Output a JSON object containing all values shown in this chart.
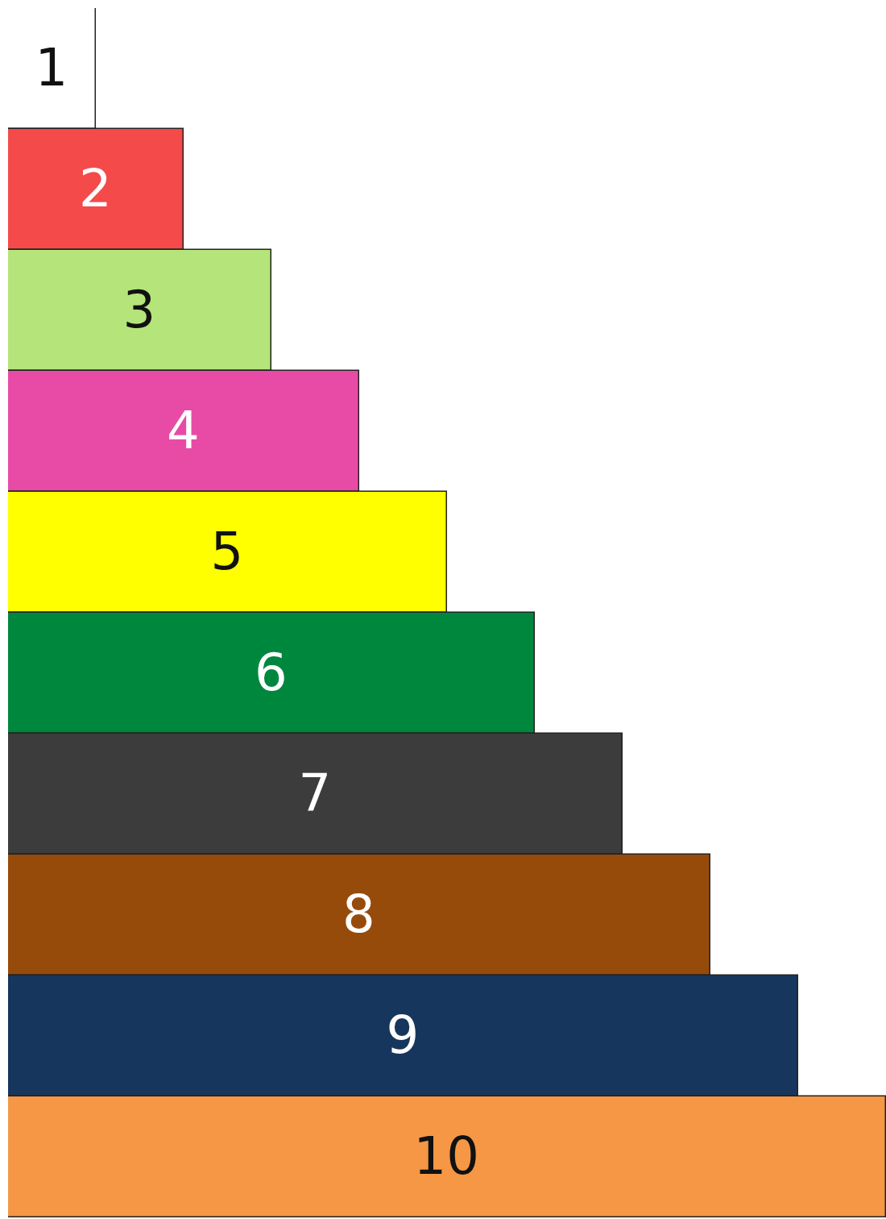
{
  "chart_data": {
    "type": "bar",
    "orientation": "horizontal",
    "categories": [
      null,
      null,
      null,
      null,
      null,
      null,
      null,
      null,
      null,
      null
    ],
    "values": [
      1,
      2,
      3,
      4,
      5,
      6,
      7,
      8,
      9,
      10
    ],
    "colors": [
      "#ffffff",
      "#f44a4a",
      "#b5e57a",
      "#e84ba6",
      "#ffff00",
      "#00873e",
      "#3c3c3c",
      "#974b0a",
      "#17365d",
      "#f59745"
    ],
    "xlim": [
      0,
      10
    ],
    "data_labels": true
  }
}
